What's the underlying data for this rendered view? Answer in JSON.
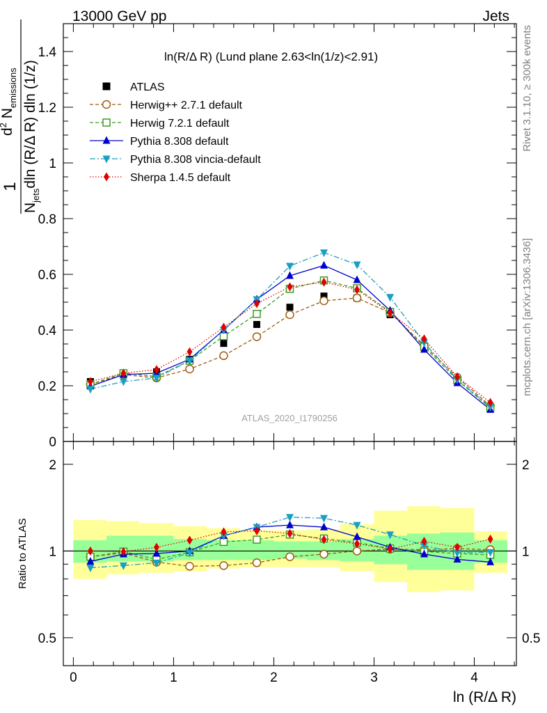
{
  "header": {
    "left": "13000 GeV pp",
    "right": "Jets"
  },
  "side_text": {
    "rivet": "Rivet 3.1.10, ≥ 300k events",
    "mcplots": "mcplots.cern.ch [arXiv:1306.3436]"
  },
  "watermark": "ATLAS_2020_I1790256",
  "chart_data": [
    {
      "type": "scatter",
      "title": "ln(R/Δ R) (Lund plane 2.63<ln(1/z)<2.91)",
      "ylabel_parts": {
        "one": "1",
        "n_jets": "N",
        "jets_sub": "jets",
        "d2": "d",
        "d2_sup": "2",
        "n_em": " N",
        "em_sub": "emissions",
        "den": "dln (R/Δ R) dln (1/z)"
      },
      "xlim": [
        -0.1,
        4.42
      ],
      "ylim": [
        0,
        1.5
      ],
      "yticks": [
        {
          "v": 0,
          "label": "0"
        },
        {
          "v": 0.2,
          "label": "0.2"
        },
        {
          "v": 0.4,
          "label": "0.4"
        },
        {
          "v": 0.6,
          "label": "0.6"
        },
        {
          "v": 0.8,
          "label": "0.8"
        },
        {
          "v": 1,
          "label": "1"
        },
        {
          "v": 1.2,
          "label": "1.2"
        },
        {
          "v": 1.4,
          "label": "1.4"
        }
      ],
      "x": [
        0.17,
        0.5,
        0.83,
        1.16,
        1.5,
        1.83,
        2.16,
        2.5,
        2.83,
        3.16,
        3.5,
        3.83,
        4.16
      ],
      "legend_position": "top-left",
      "series": [
        {
          "name": "ATLAS",
          "color": "#000000",
          "marker": "square-filled",
          "line": "none",
          "values": [
            0.215,
            0.245,
            0.25,
            0.295,
            0.352,
            0.42,
            0.482,
            0.522,
            0.515,
            0.455,
            0.34,
            0.225,
            0.125
          ],
          "band_rel": [
            0.2,
            0.14,
            0.14,
            0.13,
            0.12,
            0.11,
            0.1,
            0.1,
            0.13,
            0.22,
            0.28,
            0.28,
            0.12
          ]
        },
        {
          "name": "Herwig++ 2.7.1 default",
          "color": "#a05a0f",
          "marker": "circle-open",
          "line": "dashed",
          "values": [
            0.205,
            0.24,
            0.228,
            0.26,
            0.308,
            0.376,
            0.455,
            0.505,
            0.515,
            0.462,
            0.345,
            0.23,
            0.128
          ]
        },
        {
          "name": "Herwig 7.2.1 default",
          "color": "#3f9a1f",
          "marker": "square-open",
          "line": "dashed",
          "values": [
            0.205,
            0.245,
            0.233,
            0.29,
            0.378,
            0.458,
            0.548,
            0.578,
            0.55,
            0.465,
            0.34,
            0.22,
            0.12
          ]
        },
        {
          "name": "Pythia 8.308 default",
          "color": "#0000cc",
          "marker": "triangle-up",
          "line": "solid",
          "values": [
            0.198,
            0.24,
            0.245,
            0.295,
            0.4,
            0.51,
            0.595,
            0.632,
            0.58,
            0.47,
            0.33,
            0.21,
            0.114
          ]
        },
        {
          "name": "Pythia 8.308 vincia-default",
          "color": "#1a9fc0",
          "marker": "triangle-down",
          "line": "dashdot",
          "values": [
            0.188,
            0.215,
            0.228,
            0.29,
            0.4,
            0.51,
            0.63,
            0.678,
            0.635,
            0.518,
            0.355,
            0.222,
            0.124
          ]
        },
        {
          "name": "Sherpa 1.4.5 default",
          "color": "#e00000",
          "marker": "diamond",
          "line": "dotted",
          "values": [
            0.215,
            0.245,
            0.258,
            0.322,
            0.41,
            0.495,
            0.555,
            0.572,
            0.545,
            0.462,
            0.368,
            0.232,
            0.14
          ]
        }
      ]
    },
    {
      "type": "scatter",
      "ylabel": "Ratio to ATLAS",
      "xlabel": "ln (R/Δ R)",
      "xlim": [
        -0.1,
        4.42
      ],
      "ylim_log": [
        0.4,
        2.4
      ],
      "yticks": [
        {
          "v": 0.5,
          "label": "0.5"
        },
        {
          "v": 1,
          "label": "1"
        },
        {
          "v": 2,
          "label": "2"
        }
      ],
      "xticks": [
        {
          "v": 0,
          "label": "0"
        },
        {
          "v": 1,
          "label": "1"
        },
        {
          "v": 2,
          "label": "2"
        },
        {
          "v": 3,
          "label": "3"
        },
        {
          "v": 4,
          "label": "4"
        }
      ],
      "bands": {
        "edges": [
          0.0,
          0.33,
          0.66,
          1.0,
          1.33,
          1.66,
          2.0,
          2.33,
          2.66,
          3.0,
          3.33,
          3.66,
          4.0,
          4.33
        ],
        "green_lo": [
          0.91,
          0.92,
          0.92,
          0.93,
          0.93,
          0.93,
          0.94,
          0.93,
          0.92,
          0.9,
          0.86,
          0.86,
          0.91
        ],
        "green_hi": [
          1.09,
          1.13,
          1.13,
          1.1,
          1.09,
          1.09,
          1.08,
          1.08,
          1.1,
          1.13,
          1.15,
          1.16,
          1.09
        ],
        "yellow_lo": [
          0.8,
          0.83,
          0.84,
          0.85,
          0.87,
          0.88,
          0.88,
          0.88,
          0.85,
          0.78,
          0.72,
          0.73,
          0.84
        ],
        "yellow_hi": [
          1.28,
          1.27,
          1.25,
          1.22,
          1.2,
          1.18,
          1.18,
          1.19,
          1.24,
          1.38,
          1.43,
          1.41,
          1.17
        ]
      },
      "series": [
        {
          "name": "Herwig++ 2.7.1 default",
          "values": [
            0.955,
            0.985,
            0.915,
            0.885,
            0.89,
            0.91,
            0.955,
            0.975,
            1.0,
            1.015,
            1.01,
            1.02,
            1.01
          ]
        },
        {
          "name": "Herwig 7.2.1 default",
          "values": [
            0.955,
            0.995,
            0.935,
            0.99,
            1.075,
            1.095,
            1.14,
            1.105,
            1.07,
            1.02,
            0.995,
            0.98,
            0.97
          ]
        },
        {
          "name": "Pythia 8.308 default",
          "values": [
            0.92,
            0.975,
            0.98,
            1.0,
            1.13,
            1.21,
            1.23,
            1.21,
            1.12,
            1.03,
            0.975,
            0.935,
            0.915
          ]
        },
        {
          "name": "Pythia 8.308 vincia-default",
          "values": [
            0.875,
            0.89,
            0.91,
            0.985,
            1.13,
            1.21,
            1.31,
            1.3,
            1.23,
            1.14,
            1.045,
            0.985,
            0.99
          ]
        },
        {
          "name": "Sherpa 1.4.5 default",
          "values": [
            1.0,
            0.995,
            1.03,
            1.09,
            1.165,
            1.175,
            1.15,
            1.095,
            1.06,
            1.015,
            1.08,
            1.03,
            1.1
          ]
        }
      ]
    }
  ]
}
